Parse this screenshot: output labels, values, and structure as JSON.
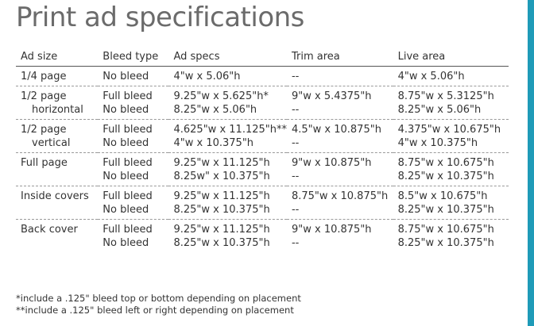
{
  "title": "Print ad specifications",
  "table": {
    "headers": [
      "Ad size",
      "Bleed type",
      "Ad specs",
      "Trim area",
      "Live area"
    ],
    "rows": [
      {
        "ad_size": [
          "1/4 page"
        ],
        "bleed_type": [
          "No bleed"
        ],
        "ad_specs": [
          "4\"w x 5.06\"h"
        ],
        "trim_area": [
          "--"
        ],
        "live_area": [
          "4\"w x 5.06\"h"
        ]
      },
      {
        "ad_size": [
          "1/2 page",
          "horizontal"
        ],
        "bleed_type": [
          "Full bleed",
          "No bleed"
        ],
        "ad_specs": [
          "9.25\"w x 5.625\"h*",
          "8.25\"w x 5.06\"h"
        ],
        "trim_area": [
          "9\"w x 5.4375\"h",
          "--"
        ],
        "live_area": [
          "8.75\"w x 5.3125\"h",
          "8.25\"w x 5.06\"h"
        ]
      },
      {
        "ad_size": [
          "1/2 page",
          "vertical"
        ],
        "bleed_type": [
          "Full bleed",
          "No bleed"
        ],
        "ad_specs": [
          "4.625\"w x 11.125\"h**",
          "4\"w x 10.375\"h"
        ],
        "trim_area": [
          "4.5\"w x 10.875\"h",
          "--"
        ],
        "live_area": [
          "4.375\"w x 10.675\"h",
          "4\"w x 10.375\"h"
        ]
      },
      {
        "ad_size": [
          "Full page"
        ],
        "bleed_type": [
          "Full bleed",
          "No bleed"
        ],
        "ad_specs": [
          "9.25\"w x 11.125\"h",
          "8.25w\" x 10.375\"h"
        ],
        "trim_area": [
          "9\"w x 10.875\"h",
          "--"
        ],
        "live_area": [
          "8.75\"w x 10.675\"h",
          "8.25\"w x 10.375\"h"
        ]
      },
      {
        "ad_size": [
          "Inside covers"
        ],
        "bleed_type": [
          "Full bleed",
          "No bleed"
        ],
        "ad_specs": [
          "9.25\"w x 11.125\"h",
          "8.25\"w x 10.375\"h"
        ],
        "trim_area": [
          "8.75\"w x 10.875\"h",
          "--"
        ],
        "live_area": [
          "8.5\"w x 10.675\"h",
          "8.25\"w x 10.375\"h"
        ]
      },
      {
        "ad_size": [
          "Back cover"
        ],
        "bleed_type": [
          "Full bleed",
          "No bleed"
        ],
        "ad_specs": [
          "9.25\"w x 11.125\"h",
          "8.25\"w x 10.375\"h"
        ],
        "trim_area": [
          "9\"w x 10.875\"h",
          "--"
        ],
        "live_area": [
          "8.75\"w x 10.675\"h",
          "8.25\"w x 10.375\"h"
        ]
      }
    ]
  },
  "footnotes": [
    "*include a .125\" bleed top or bottom depending on placement",
    "**include a .125\" bleed left or right depending on placement"
  ],
  "colors": {
    "accent_strip": "#1f9bb8",
    "title": "#6b6b6b",
    "text": "#333333"
  }
}
